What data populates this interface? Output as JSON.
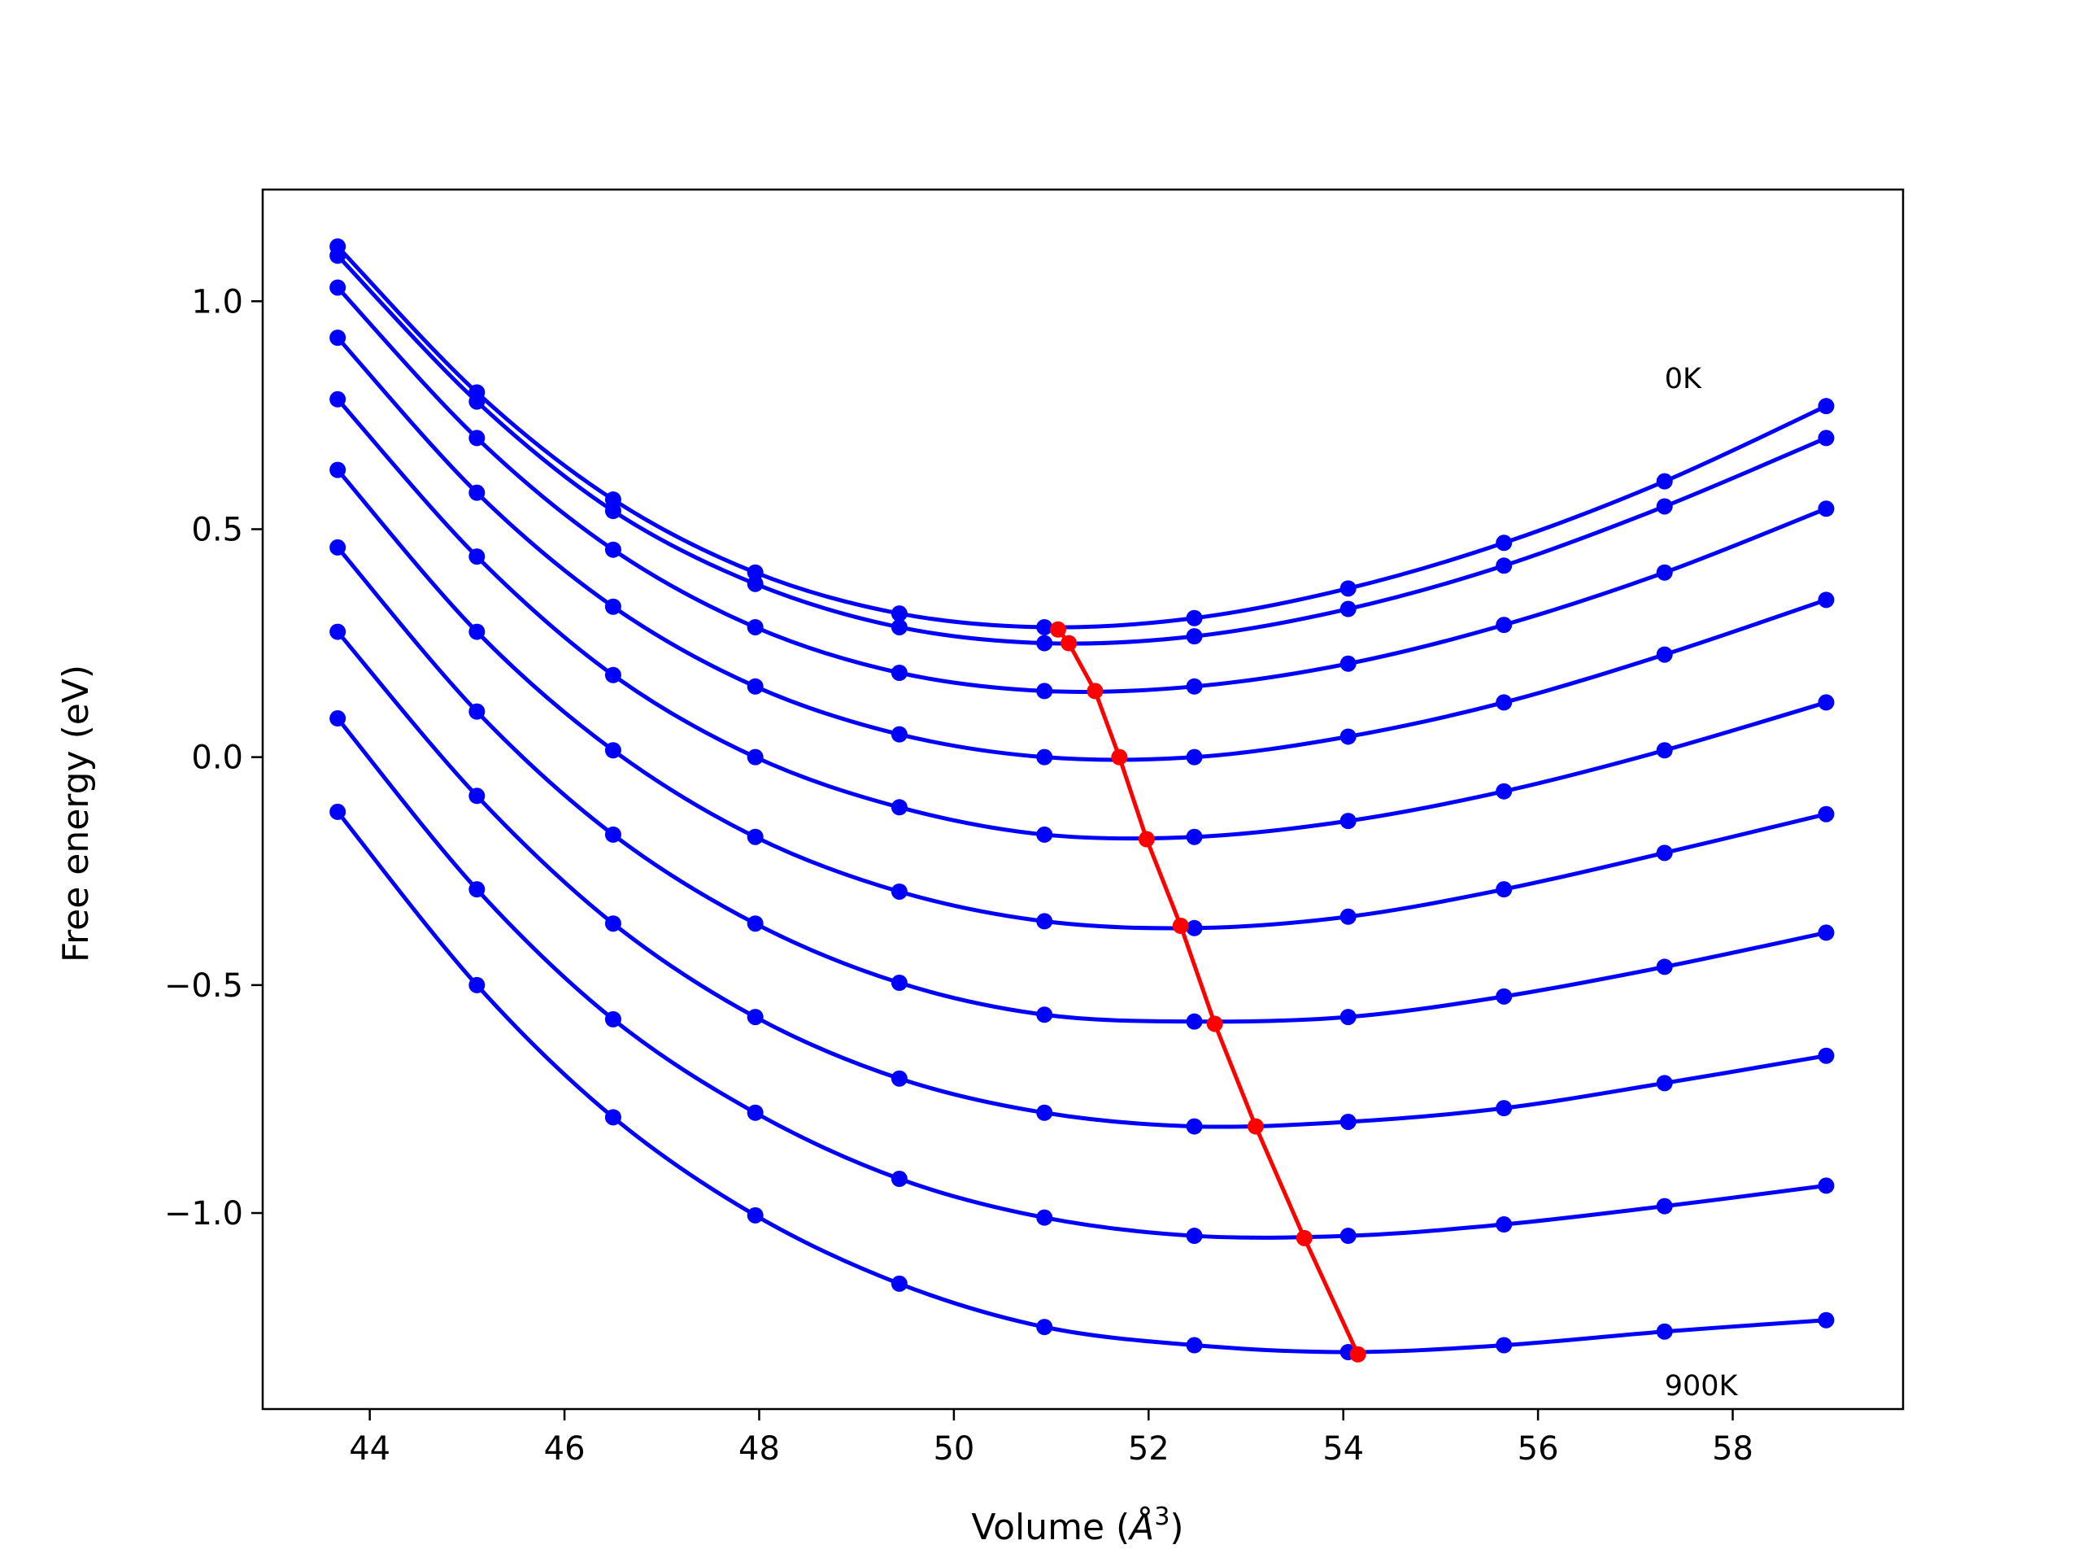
{
  "chart_data": {
    "type": "line",
    "title": "",
    "xlabel": "Volume (",
    "xlabel_symbol": "Å",
    "xlabel_exp": "3",
    "xlabel_close": ")",
    "ylabel": "Free energy (eV)",
    "xlim": [
      42.9,
      59.75
    ],
    "ylim": [
      -1.43,
      1.245
    ],
    "xticks": [
      44,
      46,
      48,
      50,
      52,
      54,
      56,
      58
    ],
    "xtick_labels": [
      "44",
      "46",
      "48",
      "50",
      "52",
      "54",
      "56",
      "58"
    ],
    "yticks": [
      1.0,
      0.5,
      0.0,
      -0.5,
      -1.0
    ],
    "ytick_labels": [
      "1.0",
      "0.5",
      "0.0",
      "−0.5",
      "−1.0"
    ],
    "grid": false,
    "series_color": "#0000ff",
    "min_color": "#ff0000",
    "annotations": [
      {
        "text": "0K",
        "x": 57.3,
        "y": 0.81
      },
      {
        "text": "900K",
        "x": 57.3,
        "y": -1.4
      }
    ],
    "x": [
      43.67,
      45.1,
      46.5,
      47.96,
      49.44,
      50.93,
      52.47,
      54.05,
      55.65,
      57.3,
      58.96
    ],
    "series": [
      {
        "values": [
          1.12,
          0.8,
          0.565,
          0.405,
          0.315,
          0.285,
          0.305,
          0.37,
          0.47,
          0.605,
          0.77
        ]
      },
      {
        "values": [
          1.1,
          0.78,
          0.54,
          0.38,
          0.285,
          0.25,
          0.265,
          0.325,
          0.42,
          0.55,
          0.7
        ]
      },
      {
        "values": [
          1.03,
          0.7,
          0.455,
          0.285,
          0.185,
          0.145,
          0.155,
          0.205,
          0.29,
          0.405,
          0.545
        ]
      },
      {
        "values": [
          0.92,
          0.58,
          0.33,
          0.155,
          0.05,
          0.0,
          0.0,
          0.045,
          0.12,
          0.225,
          0.345
        ]
      },
      {
        "values": [
          0.785,
          0.44,
          0.18,
          0.0,
          -0.11,
          -0.17,
          -0.175,
          -0.14,
          -0.075,
          0.015,
          0.12
        ]
      },
      {
        "values": [
          0.63,
          0.275,
          0.015,
          -0.175,
          -0.295,
          -0.36,
          -0.375,
          -0.35,
          -0.29,
          -0.21,
          -0.125
        ]
      },
      {
        "values": [
          0.46,
          0.1,
          -0.17,
          -0.365,
          -0.495,
          -0.565,
          -0.58,
          -0.57,
          -0.525,
          -0.46,
          -0.385
        ]
      },
      {
        "values": [
          0.275,
          -0.085,
          -0.365,
          -0.57,
          -0.705,
          -0.78,
          -0.81,
          -0.8,
          -0.77,
          -0.715,
          -0.655
        ]
      },
      {
        "values": [
          0.085,
          -0.29,
          -0.575,
          -0.78,
          -0.925,
          -1.01,
          -1.05,
          -1.05,
          -1.025,
          -0.985,
          -0.94
        ]
      },
      {
        "values": [
          -0.12,
          -0.5,
          -0.79,
          -1.005,
          -1.155,
          -1.25,
          -1.29,
          -1.305,
          -1.29,
          -1.26,
          -1.235
        ]
      }
    ],
    "minima": {
      "x": [
        51.07,
        51.18,
        51.45,
        51.7,
        51.98,
        52.33,
        52.68,
        53.1,
        53.6,
        54.15
      ],
      "y": [
        0.28,
        0.25,
        0.145,
        0.0,
        -0.18,
        -0.37,
        -0.585,
        -0.81,
        -1.055,
        -1.31
      ]
    }
  }
}
